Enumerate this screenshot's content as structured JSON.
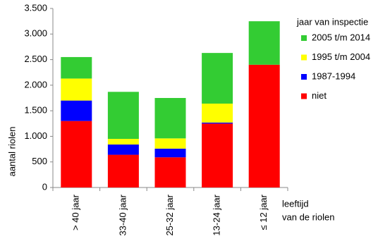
{
  "chart_data": {
    "type": "stacked-bar",
    "categories": [
      "> 40 jaar",
      "33-40 jaar",
      "25-32 jaar",
      "13-24 jaar",
      "≤ 12 jaar"
    ],
    "series": [
      {
        "name": "niet",
        "color": "#ff0000",
        "values": [
          1300,
          640,
          590,
          1250,
          2400
        ]
      },
      {
        "name": "1987-1994",
        "color": "#0000ff",
        "values": [
          400,
          200,
          170,
          20,
          0
        ]
      },
      {
        "name": "1995 t/m 2004",
        "color": "#ffff00",
        "values": [
          430,
          110,
          200,
          370,
          0
        ]
      },
      {
        "name": "2005 t/m 2014",
        "color": "#33cc33",
        "values": [
          420,
          920,
          790,
          990,
          850
        ]
      }
    ],
    "ylim": [
      0,
      3500
    ],
    "yticks": [
      0,
      500,
      {
        "value": 1000,
        "label": "1.000"
      },
      {
        "value": 1500,
        "label": "1.500"
      },
      {
        "value": 2000,
        "label": "2.000"
      },
      {
        "value": 2500,
        "label": "2.500"
      },
      {
        "value": 3000,
        "label": "3.000"
      },
      {
        "value": 3500,
        "label": "3.500"
      }
    ],
    "y_label": "aantal riolen",
    "x_label": [
      "leeftijd",
      "van de riolen"
    ],
    "legend_title": "jaar van inspectie",
    "legend_position": "right"
  }
}
